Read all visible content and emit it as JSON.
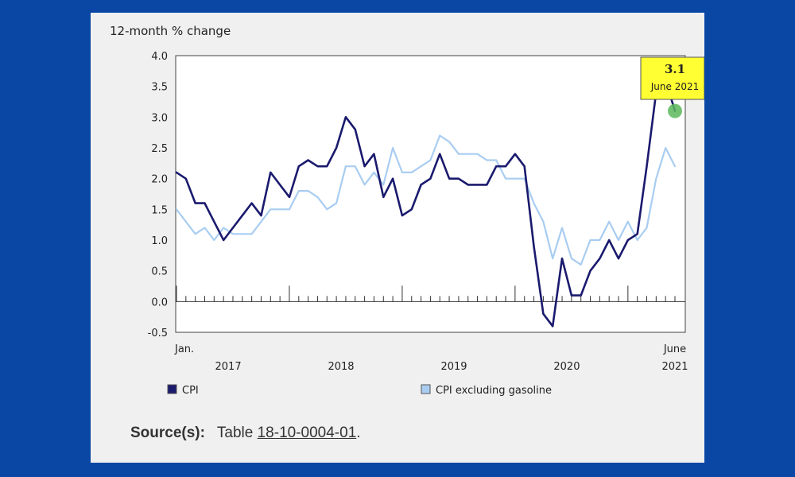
{
  "chart_data": {
    "type": "line",
    "ylabel": "12-month % change",
    "ylim": [
      -0.5,
      4.0
    ],
    "yticks": [
      "4.0",
      "3.5",
      "3.0",
      "2.5",
      "2.0",
      "1.5",
      "1.0",
      "0.5",
      "0.0",
      "-0.5"
    ],
    "x_start_label": "Jan.",
    "x_end_label": [
      "June",
      "2021"
    ],
    "year_labels": [
      "2017",
      "2018",
      "2019",
      "2020"
    ],
    "months": 54,
    "series": [
      {
        "name": "CPI",
        "color": "#1a1a6e",
        "values": [
          2.1,
          2.0,
          1.6,
          1.6,
          1.3,
          1.0,
          1.2,
          1.4,
          1.6,
          1.4,
          2.1,
          1.9,
          1.7,
          2.2,
          2.3,
          2.2,
          2.2,
          2.5,
          3.0,
          2.8,
          2.2,
          2.4,
          1.7,
          2.0,
          1.4,
          1.5,
          1.9,
          2.0,
          2.4,
          2.0,
          2.0,
          1.9,
          1.9,
          1.9,
          2.2,
          2.2,
          2.4,
          2.2,
          0.9,
          -0.2,
          -0.4,
          0.7,
          0.1,
          0.1,
          0.5,
          0.7,
          1.0,
          0.7,
          1.0,
          1.1,
          2.2,
          3.4,
          3.6,
          3.1
        ]
      },
      {
        "name": "CPI excluding gasoline",
        "color": "#a9cdf1",
        "values": [
          1.5,
          1.3,
          1.1,
          1.2,
          1.0,
          1.2,
          1.1,
          1.1,
          1.1,
          1.3,
          1.5,
          1.5,
          1.5,
          1.8,
          1.8,
          1.7,
          1.5,
          1.6,
          2.2,
          2.2,
          1.9,
          2.1,
          1.9,
          2.5,
          2.1,
          2.1,
          2.2,
          2.3,
          2.7,
          2.6,
          2.4,
          2.4,
          2.4,
          2.3,
          2.3,
          2.0,
          2.0,
          2.0,
          1.6,
          1.3,
          0.7,
          1.2,
          0.7,
          0.6,
          1.0,
          1.0,
          1.3,
          1.0,
          1.3,
          1.0,
          1.2,
          2.0,
          2.5,
          2.2
        ]
      }
    ],
    "annotation": {
      "value": "3.1",
      "label": "June 2021"
    }
  },
  "source": {
    "label": "Source(s):",
    "text": "Table",
    "link": "18-10-0004-01",
    "end": "."
  }
}
